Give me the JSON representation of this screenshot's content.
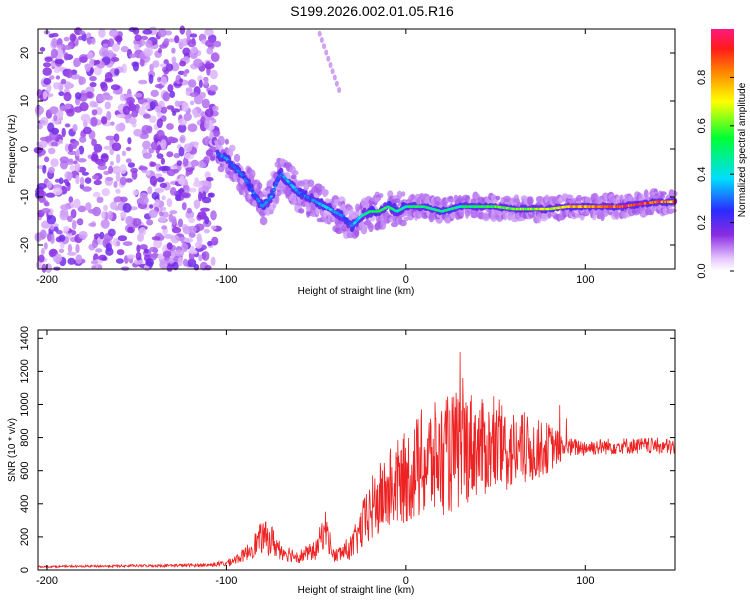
{
  "title": "S199.2026.002.01.05.R16",
  "chart_data": [
    {
      "type": "heatmap",
      "name": "spectrogram",
      "xlabel": "Height of straight line (km)",
      "ylabel": "Frequency (Hz)",
      "xlim": [
        -205,
        150
      ],
      "ylim": [
        -25,
        25
      ],
      "x_ticks": [
        -200,
        -100,
        0,
        100
      ],
      "x_tick_labels": [
        "-200",
        "-100",
        "0",
        "100"
      ],
      "y_ticks": [
        20,
        10,
        0,
        -10,
        -20
      ],
      "y_tick_labels": [
        "20",
        "10",
        "0",
        "-10",
        "-20"
      ],
      "colorbar": {
        "label": "Normalized spectral amplitude",
        "range": [
          0,
          1
        ],
        "ticks": [
          0.0,
          0.2,
          0.4,
          0.6,
          0.8
        ],
        "tick_labels": [
          "0.0",
          "0.2",
          "0.4",
          "0.6",
          "0.8"
        ]
      },
      "ridge": {
        "x": [
          -105,
          -100,
          -95,
          -90,
          -85,
          -80,
          -75,
          -70,
          -65,
          -60,
          -55,
          -50,
          -45,
          -40,
          -35,
          -30,
          -25,
          -20,
          -15,
          -10,
          -5,
          0,
          10,
          20,
          30,
          40,
          50,
          60,
          70,
          80,
          90,
          100,
          110,
          120,
          130,
          140,
          150
        ],
        "freq": [
          -1,
          -2,
          -4,
          -6,
          -9,
          -12,
          -10,
          -5,
          -7,
          -9,
          -10,
          -11,
          -12,
          -13,
          -14,
          -16,
          -14,
          -13,
          -13,
          -12,
          -13,
          -12,
          -12,
          -13,
          -12,
          -12,
          -12,
          -12.5,
          -12.5,
          -12.5,
          -12,
          -12,
          -12,
          -12,
          -11.5,
          -11,
          -11
        ],
        "amplitude": [
          0.3,
          0.35,
          0.3,
          0.3,
          0.3,
          0.3,
          0.35,
          0.3,
          0.35,
          0.35,
          0.3,
          0.35,
          0.4,
          0.35,
          0.3,
          0.3,
          0.5,
          0.5,
          0.55,
          0.55,
          0.5,
          0.5,
          0.55,
          0.5,
          0.5,
          0.55,
          0.6,
          0.65,
          0.65,
          0.7,
          0.75,
          0.8,
          0.9,
          0.95,
          0.95,
          0.9,
          0.85
        ]
      },
      "noise_region_x": [
        -205,
        -115
      ]
    },
    {
      "type": "line",
      "name": "snr",
      "xlabel": "Height of straight line (km)",
      "ylabel": "SNR (10 * v/v)",
      "xlim": [
        -205,
        150
      ],
      "ylim": [
        0,
        1450
      ],
      "x_ticks": [
        -200,
        -100,
        0,
        100
      ],
      "x_tick_labels": [
        "-200",
        "-100",
        "0",
        "100"
      ],
      "y_ticks": [
        0,
        200,
        400,
        600,
        800,
        1000,
        1200,
        1400
      ],
      "y_tick_labels": [
        "0",
        "200",
        "400",
        "600",
        "800",
        "1000",
        "1200",
        "1400"
      ],
      "color": "#ee2222",
      "envelope": {
        "x": [
          -205,
          -150,
          -110,
          -100,
          -90,
          -80,
          -75,
          -70,
          -60,
          -50,
          -45,
          -40,
          -30,
          -20,
          -10,
          0,
          10,
          20,
          30,
          35,
          40,
          50,
          60,
          70,
          80,
          90,
          100,
          120,
          140,
          150
        ],
        "mean": [
          20,
          25,
          30,
          40,
          90,
          200,
          180,
          120,
          80,
          120,
          260,
          80,
          140,
          350,
          480,
          560,
          640,
          680,
          720,
          760,
          740,
          730,
          720,
          720,
          740,
          740,
          740,
          750,
          750,
          740
        ],
        "spread": [
          5,
          8,
          10,
          20,
          40,
          100,
          100,
          60,
          40,
          60,
          120,
          40,
          80,
          200,
          250,
          280,
          350,
          350,
          380,
          350,
          300,
          280,
          250,
          200,
          150,
          60,
          50,
          50,
          50,
          50
        ]
      }
    }
  ]
}
